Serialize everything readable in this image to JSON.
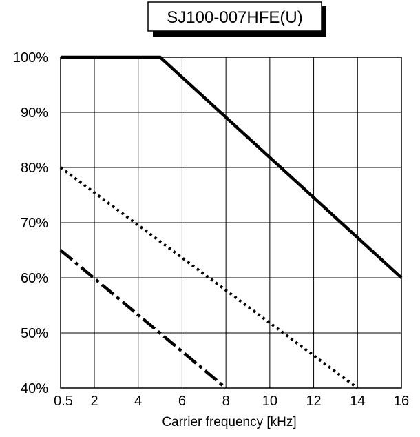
{
  "chart_data": {
    "type": "line",
    "title": "SJ100-007HFE(U)",
    "xlabel": "Carrier frequency [kHz]",
    "ylabel": "",
    "xlim": [
      0.5,
      16
    ],
    "ylim": [
      40,
      100
    ],
    "x_ticks": [
      0.5,
      2,
      4,
      6,
      8,
      10,
      12,
      14,
      16
    ],
    "x_tick_labels": [
      "0.5",
      "2",
      "4",
      "6",
      "8",
      "10",
      "12",
      "14",
      "16"
    ],
    "y_ticks": [
      40,
      50,
      60,
      70,
      80,
      90,
      100
    ],
    "y_tick_labels": [
      "40%",
      "50%",
      "60%",
      "70%",
      "80%",
      "90%",
      "100%"
    ],
    "grid": true,
    "series": [
      {
        "style": "solid",
        "x": [
          0.5,
          5,
          16
        ],
        "y": [
          100,
          100,
          60
        ]
      },
      {
        "style": "dotted",
        "x": [
          0.5,
          14
        ],
        "y": [
          80,
          40
        ]
      },
      {
        "style": "dash-dot",
        "x": [
          0.5,
          8
        ],
        "y": [
          65,
          40
        ]
      }
    ]
  }
}
